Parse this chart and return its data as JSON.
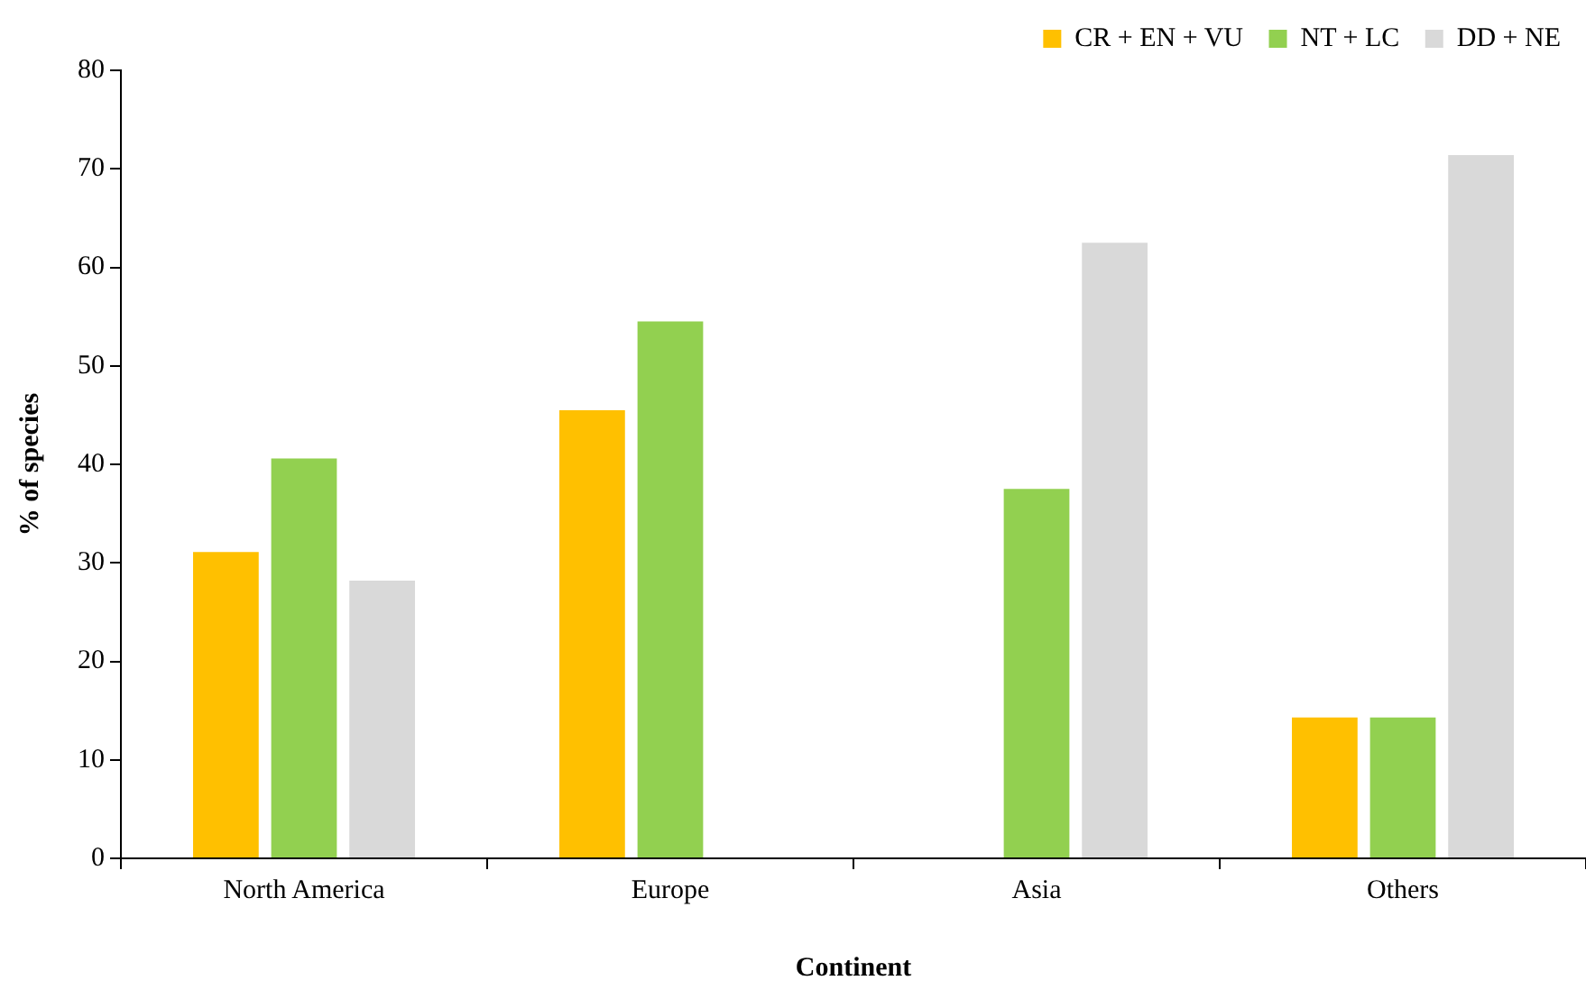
{
  "chart_data": {
    "type": "bar",
    "xlabel": "Continent",
    "ylabel": "% of species",
    "categories": [
      "North America",
      "Europe",
      "Asia",
      "Others"
    ],
    "series": [
      {
        "name": "CR + EN + VU",
        "color": "#ffc000",
        "values": [
          31.1,
          45.5,
          0,
          14.3
        ]
      },
      {
        "name": "NT + LC",
        "color": "#92d050",
        "values": [
          40.6,
          54.5,
          37.5,
          14.3
        ]
      },
      {
        "name": "DD + NE",
        "color": "#d9d9d9",
        "values": [
          28.2,
          0,
          62.5,
          71.4
        ]
      }
    ],
    "ylim": [
      0,
      80
    ],
    "yticks": [
      0,
      10,
      20,
      30,
      40,
      50,
      60,
      70,
      80
    ],
    "grid": false,
    "legend": "top right"
  }
}
